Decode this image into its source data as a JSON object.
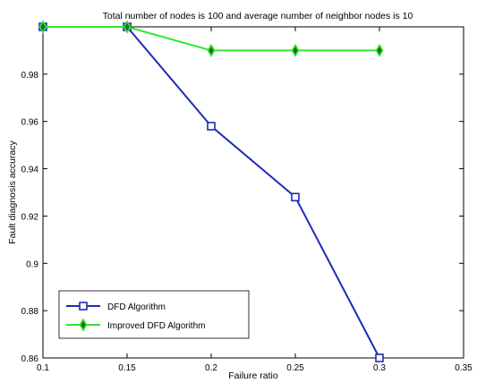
{
  "chart_data": {
    "type": "line",
    "title": "Total number of nodes is 100 and average number of neighbor nodes is 10",
    "xlabel": "Failure ratio",
    "ylabel": "Fault diagnosis accuracy",
    "xlim": [
      0.1,
      0.35
    ],
    "ylim": [
      0.86,
      1.0
    ],
    "xticks": [
      "0.1",
      "0.15",
      "0.2",
      "0.25",
      "0.3",
      "0.35"
    ],
    "yticks": [
      "0.86",
      "0.88",
      "0.9",
      "0.92",
      "0.94",
      "0.96",
      "0.98"
    ],
    "grid": false,
    "legend_position": "bottom-left",
    "x": [
      0.1,
      0.15,
      0.2,
      0.25,
      0.3
    ],
    "series": [
      {
        "name": "DFD Algorithm",
        "values": [
          1.0,
          1.0,
          0.958,
          0.928,
          0.86
        ],
        "color": "#1f2bb8",
        "marker": "square"
      },
      {
        "name": "Improved DFD Algorithm",
        "values": [
          1.0,
          1.0,
          0.99,
          0.99,
          0.99
        ],
        "color": "#2ee62e",
        "marker": "diamond"
      }
    ]
  }
}
